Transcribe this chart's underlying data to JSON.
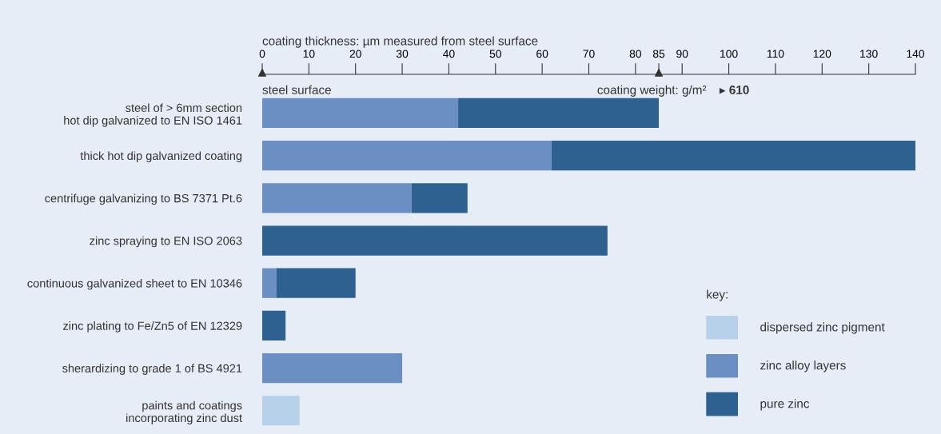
{
  "chart_data": {
    "type": "bar",
    "orientation": "horizontal",
    "stacked": true,
    "xlabel": "coating thickness: µm measured from steel surface",
    "categories": [
      "steel of > 6mm section\nhot dip galvanized to EN ISO 1461",
      "thick hot dip galvanized coating",
      "centrifuge galvanizing to BS 7371 Pt.6",
      "zinc spraying to EN ISO 2063",
      "continuous galvanized sheet to EN 10346",
      "zinc plating to Fe/Zn5 of EN 12329",
      "sherardizing to grade 1 of BS 4921",
      "paints and coatings\nincorporating zinc dust"
    ],
    "series": [
      {
        "name": "dispersed zinc pigment",
        "color": "#b8d1ea",
        "values": [
          0,
          0,
          0,
          0,
          0,
          0,
          0,
          8
        ]
      },
      {
        "name": "zinc alloy layers",
        "color": "#6b8fc3",
        "values": [
          42,
          62,
          32,
          0,
          3,
          0,
          30,
          0
        ]
      },
      {
        "name": "pure zinc",
        "color": "#2e6090",
        "values": [
          43,
          78,
          12,
          74,
          17,
          5,
          0,
          0
        ]
      }
    ],
    "xlim": [
      0,
      140
    ],
    "xticks": [
      0,
      10,
      20,
      30,
      40,
      50,
      60,
      70,
      80,
      {
        "value": 85,
        "label": "85"
      },
      90,
      100,
      110,
      120,
      130,
      140
    ],
    "annotations": [
      "steel surface",
      "coating weight: g/m²",
      "▸ 610"
    ],
    "legend": "bottom right",
    "legend_title": "key:",
    "grid": false
  }
}
